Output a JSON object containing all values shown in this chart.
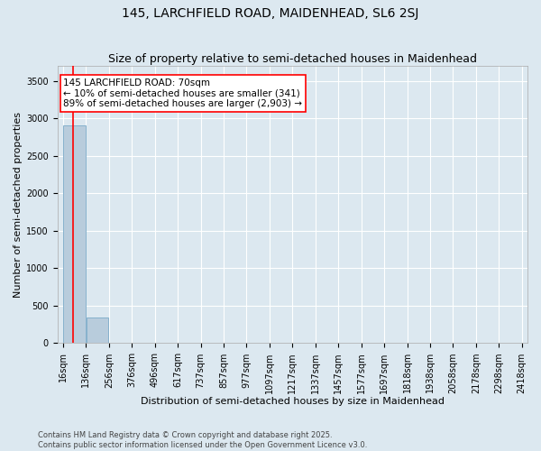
{
  "title": "145, LARCHFIELD ROAD, MAIDENHEAD, SL6 2SJ",
  "subtitle": "Size of property relative to semi-detached houses in Maidenhead",
  "xlabel": "Distribution of semi-detached houses by size in Maidenhead",
  "ylabel": "Number of semi-detached properties",
  "footer_line1": "Contains HM Land Registry data © Crown copyright and database right 2025.",
  "footer_line2": "Contains public sector information licensed under the Open Government Licence v3.0.",
  "annotation_line1": "145 LARCHFIELD ROAD: 70sqm",
  "annotation_line2": "← 10% of semi-detached houses are smaller (341)",
  "annotation_line3": "89% of semi-detached houses are larger (2,903) →",
  "property_size": 70,
  "bin_edges": [
    16,
    136,
    256,
    376,
    496,
    617,
    737,
    857,
    977,
    1097,
    1217,
    1337,
    1457,
    1577,
    1697,
    1818,
    1938,
    2058,
    2178,
    2298,
    2418
  ],
  "bar_heights": [
    2903,
    341,
    0,
    0,
    0,
    0,
    0,
    0,
    0,
    0,
    0,
    0,
    0,
    0,
    0,
    0,
    0,
    0,
    0,
    0
  ],
  "highlight_bins": [
    0,
    1
  ],
  "bar_color": "#b8ccdc",
  "bar_edge_color": "#7aaac8",
  "red_line_x": 70,
  "ylim": [
    0,
    3700
  ],
  "yticks": [
    0,
    500,
    1000,
    1500,
    2000,
    2500,
    3000,
    3500
  ],
  "background_color": "#dce8f0",
  "plot_background": "#dce8f0",
  "grid_color": "#ffffff",
  "title_fontsize": 10,
  "subtitle_fontsize": 9,
  "axis_label_fontsize": 8,
  "tick_fontsize": 7,
  "annotation_fontsize": 7.5,
  "footer_fontsize": 6
}
